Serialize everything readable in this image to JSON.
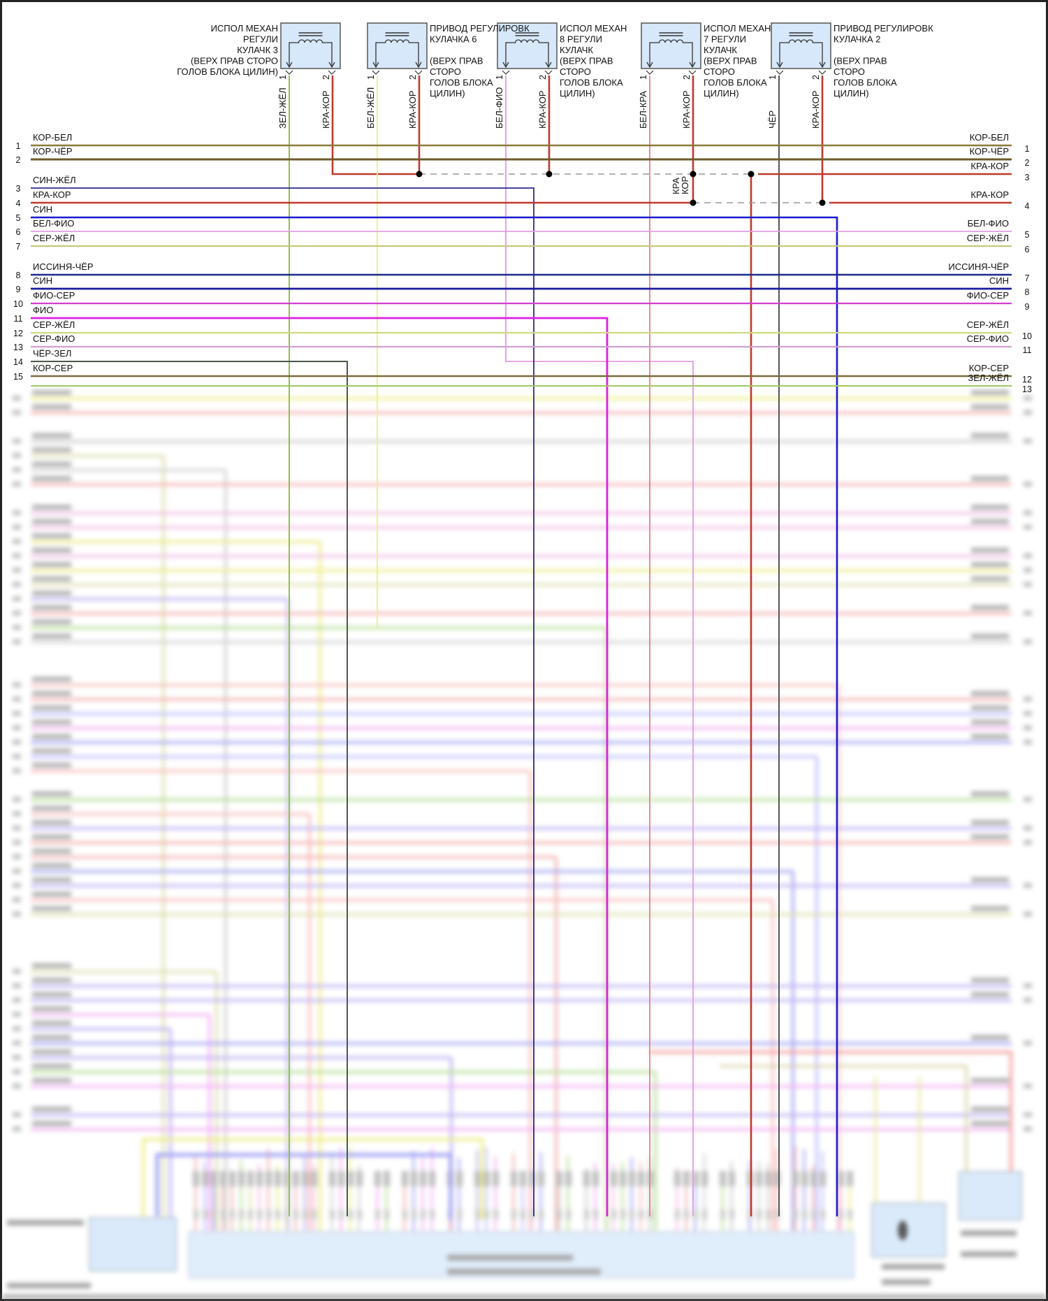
{
  "components": [
    {
      "lines": [
        "ИСПОЛ МЕХАН",
        "РЕГУЛИ",
        "КУЛАЧК 3",
        "(ВЕРХ ПРАВ СТОРО",
        "ГОЛОВ БЛОКА ЦИЛИН)"
      ],
      "pins": [
        {
          "num": "1",
          "wire": "ЗЕЛ-ЖЁЛ",
          "color": "#8bc34a"
        },
        {
          "num": "2",
          "wire": "КРА-КОР",
          "color": "#c0392b"
        }
      ]
    },
    {
      "lines": [
        "ПРИВОД РЕГУЛИРОВК",
        "КУЛАЧКА 6",
        "",
        "(ВЕРХ ПРАВ",
        "СТОРО",
        "ГОЛОВ БЛОКА",
        "ЦИЛИН)"
      ],
      "pins": [
        {
          "num": "1",
          "wire": "БЕЛ-ЖЁЛ",
          "color": "#f0ef90"
        },
        {
          "num": "2",
          "wire": "КРА-КОР",
          "color": "#c0392b"
        }
      ]
    },
    {
      "lines": [
        "ИСПОЛ МЕХАН",
        "8 РЕГУЛИ",
        "КУЛАЧК",
        "(ВЕРХ ПРАВ",
        "СТОРО",
        "ГОЛОВ БЛОКА",
        "ЦИЛИН)"
      ],
      "pins": [
        {
          "num": "1",
          "wire": "БЕЛ-ФИО",
          "color": "#e29be2"
        },
        {
          "num": "2",
          "wire": "КРА-КОР",
          "color": "#c0392b"
        }
      ]
    },
    {
      "lines": [
        "ИСПОЛ МЕХАН",
        "7 РЕГУЛИ",
        "КУЛАЧК",
        "(ВЕРХ ПРАВ",
        "СТОРО",
        "ГОЛОВ БЛОКА",
        "ЦИЛИН)"
      ],
      "pins": [
        {
          "num": "1",
          "wire": "БЕЛ-КРА",
          "color": "#e88080"
        },
        {
          "num": "2",
          "wire": "КРА-КОР",
          "color": "#c0392b"
        }
      ]
    },
    {
      "lines": [
        "ПРИВОД РЕГУЛИРОВК",
        "КУЛАЧКА 2",
        "",
        "(ВЕРХ ПРАВ",
        "СТОРО",
        "ГОЛОВ БЛОКА",
        "ЦИЛИН)"
      ],
      "pins": [
        {
          "num": "1",
          "wire": "ЧЁР",
          "color": "#555555"
        },
        {
          "num": "2",
          "wire": "КРА-КОР",
          "color": "#c0392b"
        }
      ]
    }
  ],
  "left_rows": [
    {
      "num": "1",
      "label": "КОР-БЕЛ",
      "color": "#8c7a3c"
    },
    {
      "num": "2",
      "label": "КОР-ЧЁР",
      "color": "#6e5c2c"
    },
    {
      "num": "3",
      "label": "СИН-ЖЁЛ",
      "color": "#2b2b8c"
    },
    {
      "num": "4",
      "label": "КРА-КОР",
      "color": "#c0392b"
    },
    {
      "num": "5",
      "label": "СИН",
      "color": "#1a1ad0"
    },
    {
      "num": "6",
      "label": "БЕЛ-ФИО",
      "color": "#e29be2"
    },
    {
      "num": "7",
      "label": "СЕР-ЖЁЛ",
      "color": "#c8c878"
    },
    {
      "num": "8",
      "label": "ИССИНЯ-ЧЁР",
      "color": "#1c2c8c"
    },
    {
      "num": "9",
      "label": "СИН",
      "color": "#1a1aa0"
    },
    {
      "num": "10",
      "label": "ФИО-СЕР",
      "color": "#d040d0"
    },
    {
      "num": "11",
      "label": "ФИО",
      "color": "#e020e0"
    },
    {
      "num": "12",
      "label": "СЕР-ЖЁЛ",
      "color": "#d0d880"
    },
    {
      "num": "13",
      "label": "СЕР-ФИО",
      "color": "#d0a0d0"
    },
    {
      "num": "14",
      "label": "ЧЁР-ЗЕЛ",
      "color": "#4a5a4a"
    },
    {
      "num": "15",
      "label": "КОР-СЕР",
      "color": "#7a6a3a"
    }
  ],
  "right_rows": [
    {
      "num": "1",
      "label": "КОР-БЕЛ"
    },
    {
      "num": "2",
      "label": "КОР-ЧЁР"
    },
    {
      "num": "3",
      "label": "КРА-КОР"
    },
    {
      "num": "4",
      "label": "КРА-КОР"
    },
    {
      "num": "5",
      "label": "БЕЛ-ФИО"
    },
    {
      "num": "6",
      "label": "СЕР-ЖЁЛ"
    },
    {
      "num": "7",
      "label": "ИССИНЯ-ЧЁР"
    },
    {
      "num": "8",
      "label": "СИН"
    },
    {
      "num": "9",
      "label": "ФИО-СЕР"
    },
    {
      "num": "10",
      "label": "СЕР-ЖЁЛ"
    },
    {
      "num": "11",
      "label": "СЕР-ФИО"
    },
    {
      "num": "12",
      "label": "КОР-СЕР"
    },
    {
      "num": "13",
      "label": "ЗЕЛ-ЖЁЛ"
    }
  ],
  "junction_label": [
    "КРА",
    "КОР"
  ],
  "colors": {
    "component_fill": "#d6e8fa",
    "component_stroke": "#555555",
    "splice_dash": "#999999"
  }
}
